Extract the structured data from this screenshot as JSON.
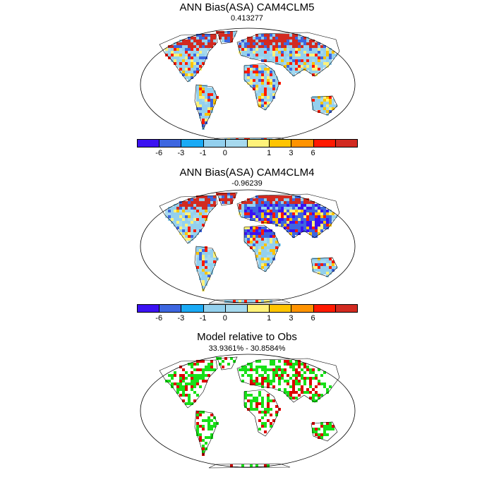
{
  "panels": [
    {
      "title": "ANN Bias(ASA) CAM4CLM5",
      "subtitle": "0.413277",
      "type": "bias"
    },
    {
      "title": "ANN Bias(ASA) CAM4CLM4",
      "subtitle": "-0.96239",
      "type": "bias"
    },
    {
      "title": "Model relative to Obs",
      "subtitle": "33.9361% - 30.8584%",
      "type": "relative"
    }
  ],
  "colorbar": {
    "colors": [
      "#3b12f2",
      "#3d66e0",
      "#1aaaf5",
      "#93d0ee",
      "#a6d9ee",
      "#fff27a",
      "#ffc400",
      "#ff9300",
      "#ff1a00",
      "#d22a20"
    ],
    "tick_labels": [
      "-6",
      "-3",
      "-1",
      "0",
      "1",
      "3",
      "6"
    ]
  },
  "relative_colors": {
    "better": "#18e018",
    "worse": "#dd0000"
  }
}
